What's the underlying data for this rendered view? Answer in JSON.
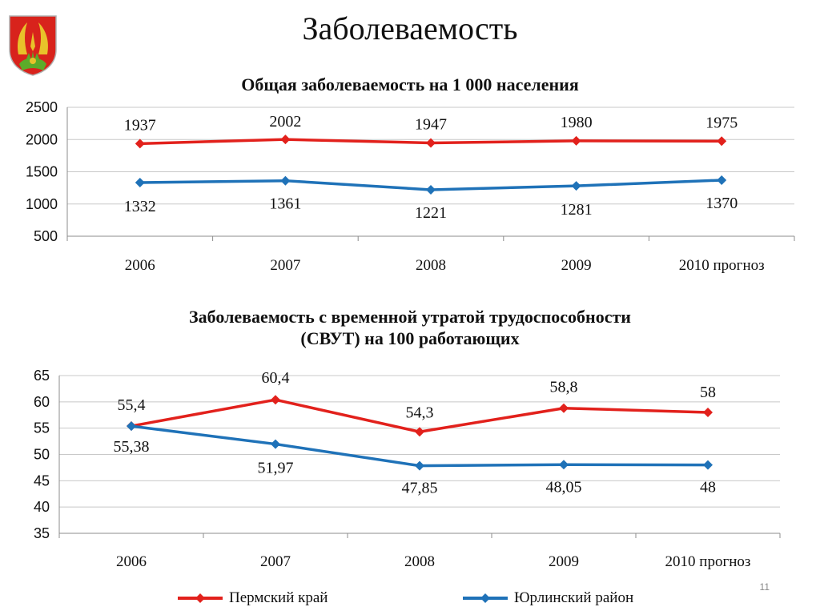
{
  "slide": {
    "title": "Заболеваемость",
    "number": "11"
  },
  "emblem": {
    "icon": "municipal-coat-of-arms"
  },
  "colors": {
    "perm": "#e2211c",
    "yurla": "#1f72b8",
    "grid": "#c8c8c8",
    "axis": "#8c8c8c"
  },
  "legend": [
    {
      "name": "Пермский край",
      "color": "#e2211c"
    },
    {
      "name": "Юрлинский район",
      "color": "#1f72b8"
    }
  ],
  "chart_data": [
    {
      "type": "line",
      "title": "Общая заболеваемость на 1 000 населения",
      "categories": [
        "2006",
        "2007",
        "2008",
        "2009",
        "2010 прогноз"
      ],
      "ylim": [
        500,
        2500
      ],
      "yticks": [
        "2500",
        "2000",
        "1500",
        "1000",
        "500"
      ],
      "grid": true,
      "series": [
        {
          "name": "Пермский край",
          "values": [
            1937,
            2002,
            1947,
            1980,
            1975
          ],
          "labels": [
            "1937",
            "2002",
            "1947",
            "1980",
            "1975"
          ]
        },
        {
          "name": "Юрлинский район",
          "values": [
            1332,
            1361,
            1221,
            1281,
            1370
          ],
          "labels": [
            "1332",
            "1361",
            "1221",
            "1281",
            "1370"
          ]
        }
      ]
    },
    {
      "type": "line",
      "title": "Заболеваемость с временной утратой трудоспособности (СВУТ) на 100 работающих",
      "title_lines": [
        "Заболеваемость с временной утратой трудоспособности",
        "(СВУТ) на 100 работающих"
      ],
      "categories": [
        "2006",
        "2007",
        "2008",
        "2009",
        "2010 прогноз"
      ],
      "ylim": [
        35,
        65
      ],
      "yticks": [
        "65",
        "60",
        "55",
        "50",
        "45",
        "40",
        "35"
      ],
      "grid": true,
      "legend": "bottom",
      "series": [
        {
          "name": "Пермский край",
          "values": [
            55.4,
            60.4,
            54.3,
            58.8,
            58
          ],
          "labels": [
            "55,4",
            "60,4",
            "54,3",
            "58,8",
            "58"
          ]
        },
        {
          "name": "Юрлинский район",
          "values": [
            55.38,
            51.97,
            47.85,
            48.05,
            48
          ],
          "labels": [
            "55,38",
            "51,97",
            "47,85",
            "48,05",
            "48"
          ]
        }
      ]
    }
  ]
}
